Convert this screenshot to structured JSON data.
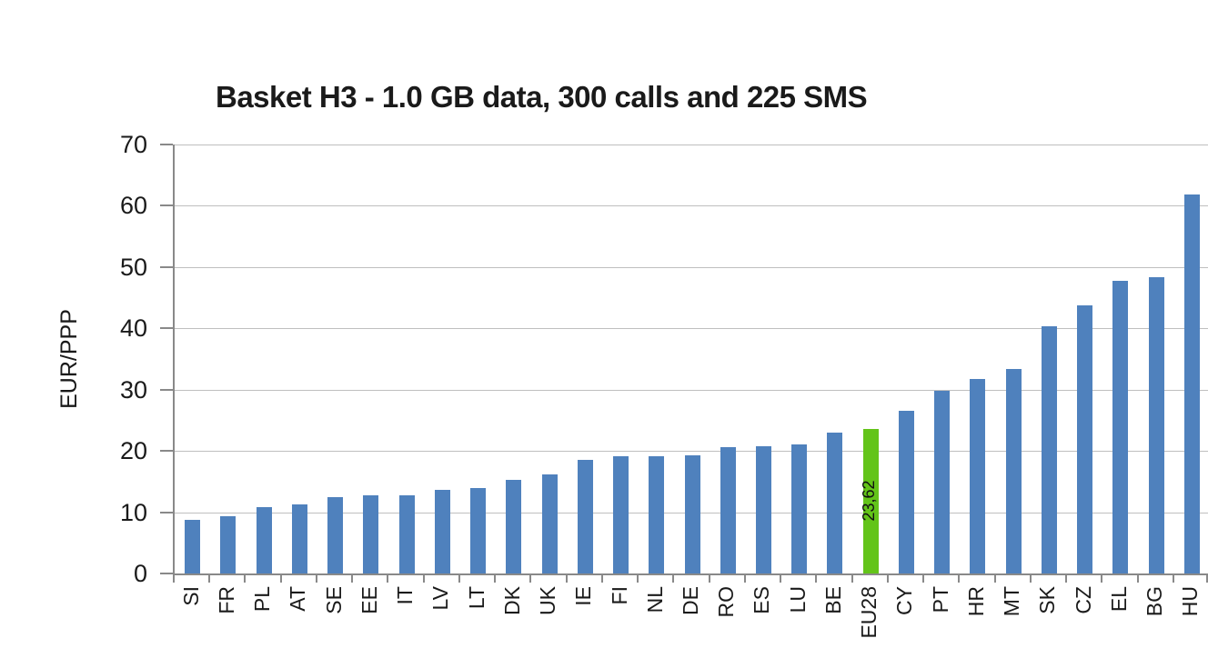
{
  "chart_data": {
    "type": "bar",
    "title": "Basket H3 - 1.0 GB data, 300 calls and 225 SMS",
    "xlabel": "",
    "ylabel": "EUR/PPP",
    "ylim": [
      0,
      70
    ],
    "ytick_interval": 10,
    "ytick_labels": [
      "0",
      "10",
      "20",
      "30",
      "40",
      "50",
      "60",
      "70"
    ],
    "grid": "horizontal",
    "legend": "none",
    "categories": [
      "SI",
      "FR",
      "PL",
      "AT",
      "SE",
      "EE",
      "IT",
      "LV",
      "LT",
      "DK",
      "UK",
      "IE",
      "FI",
      "NL",
      "DE",
      "RO",
      "ES",
      "LU",
      "BE",
      "EU28",
      "CY",
      "PT",
      "HR",
      "MT",
      "SK",
      "CZ",
      "EL",
      "BG",
      "HU"
    ],
    "values": [
      8.8,
      9.4,
      10.9,
      11.2,
      12.5,
      12.7,
      12.8,
      13.6,
      13.9,
      15.3,
      16.1,
      18.5,
      19.1,
      19.2,
      19.3,
      20.6,
      20.8,
      21.1,
      23.0,
      23.62,
      26.5,
      29.8,
      31.8,
      33.3,
      40.4,
      43.8,
      47.8,
      48.4,
      61.9
    ],
    "highlight": {
      "category": "EU28",
      "value": 23.62,
      "data_label": "23,62"
    }
  },
  "colors": {
    "bar": "#4f81bd",
    "highlight_bar": "#63c419",
    "gridline": "#bfbfbf",
    "axis": "#898989",
    "text": "#1a1a1a"
  }
}
